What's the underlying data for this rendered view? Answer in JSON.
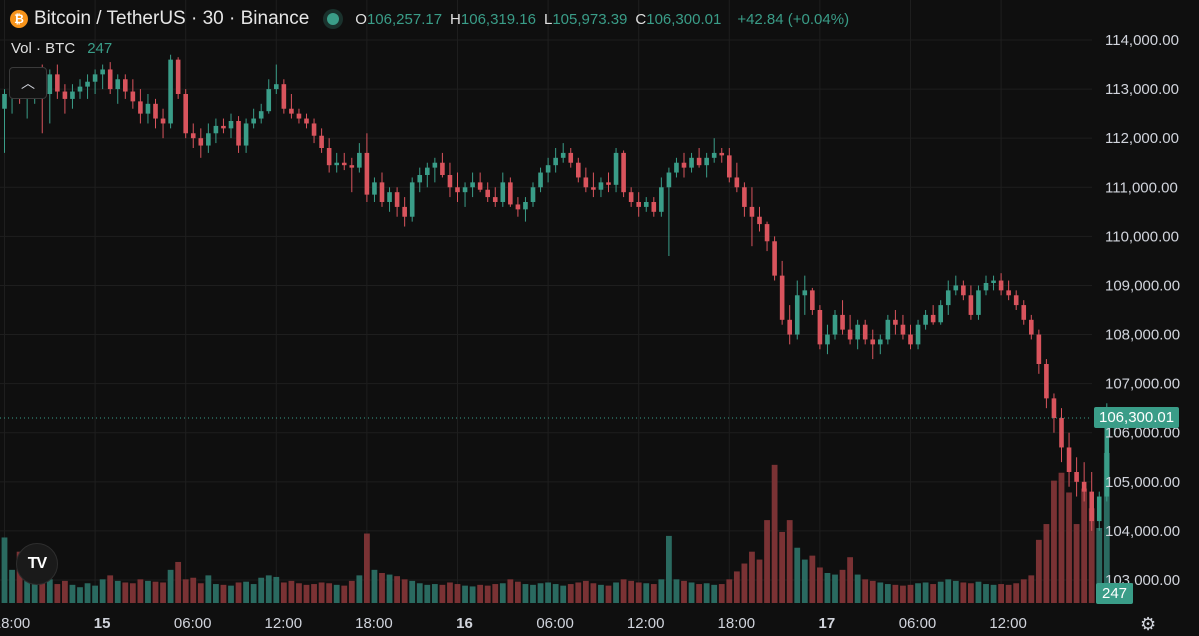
{
  "header": {
    "coin_icon_text": "₿",
    "title": "Bitcoin / TetherUS · 30 · Binance",
    "o_label": "O",
    "o_value": "106,257.17",
    "h_label": "H",
    "h_value": "106,319.16",
    "l_label": "L",
    "l_value": "105,973.39",
    "c_label": "C",
    "c_value": "106,300.01",
    "change": "+42.84 (+0.04%)"
  },
  "volume_indicator": {
    "label": "Vol · BTC",
    "value": "247"
  },
  "logo_text": "TV",
  "colors": {
    "up": "#3a9d88",
    "down": "#d9545d",
    "vol_up": "#2a6a60",
    "vol_down": "#7a3234",
    "grid": "#1e1e1e",
    "bg": "#0f0f0f"
  },
  "icons": {
    "collapse": "chevron-up-icon",
    "settings": "gear-icon",
    "logo": "tradingview-logo-icon"
  },
  "chart_data": {
    "type": "candlestick",
    "interval": "30",
    "ylim": [
      102700,
      114100
    ],
    "y_ticks": [
      103000,
      104000,
      105000,
      106000,
      107000,
      108000,
      109000,
      110000,
      111000,
      112000,
      113000,
      114000
    ],
    "y_tick_labels": [
      "103,000.00",
      "104,000.00",
      "105,000.00",
      "106,000.00",
      "107,000.00",
      "108,000.00",
      "109,000.00",
      "110,000.00",
      "111,000.00",
      "112,000.00",
      "113,000.00",
      "114,000.00"
    ],
    "x_tick_labels": [
      "18:00",
      "15",
      "06:00",
      "12:00",
      "18:00",
      "16",
      "06:00",
      "12:00",
      "18:00",
      "17",
      "06:00",
      "12:00"
    ],
    "x_tick_bold": [
      false,
      true,
      false,
      false,
      false,
      true,
      false,
      false,
      false,
      true,
      false,
      false
    ],
    "x_tick_index": [
      0,
      12,
      24,
      36,
      48,
      60,
      72,
      84,
      96,
      108,
      120,
      132
    ],
    "last_price": 106300.01,
    "last_price_label": "106,300.01",
    "last_volume": 247,
    "last_volume_label": "247",
    "candles": [
      {
        "o": 112600,
        "h": 113000,
        "l": 111700,
        "c": 112900,
        "v": 830
      },
      {
        "o": 112900,
        "h": 113200,
        "l": 112500,
        "c": 112950,
        "v": 420
      },
      {
        "o": 112950,
        "h": 113300,
        "l": 112700,
        "c": 112800,
        "v": 650
      },
      {
        "o": 112800,
        "h": 113200,
        "l": 112400,
        "c": 113000,
        "v": 380
      },
      {
        "o": 113000,
        "h": 113400,
        "l": 112700,
        "c": 113100,
        "v": 500
      },
      {
        "o": 113100,
        "h": 113500,
        "l": 112100,
        "c": 112900,
        "v": 620
      },
      {
        "o": 112900,
        "h": 113400,
        "l": 112300,
        "c": 113300,
        "v": 300
      },
      {
        "o": 113300,
        "h": 113500,
        "l": 112800,
        "c": 112950,
        "v": 240
      },
      {
        "o": 112950,
        "h": 113100,
        "l": 112500,
        "c": 112800,
        "v": 280
      },
      {
        "o": 112800,
        "h": 113100,
        "l": 112600,
        "c": 112950,
        "v": 230
      },
      {
        "o": 112950,
        "h": 113200,
        "l": 112800,
        "c": 113050,
        "v": 200
      },
      {
        "o": 113050,
        "h": 113300,
        "l": 112800,
        "c": 113150,
        "v": 250
      },
      {
        "o": 113150,
        "h": 113400,
        "l": 112900,
        "c": 113300,
        "v": 220
      },
      {
        "o": 113300,
        "h": 113500,
        "l": 113000,
        "c": 113400,
        "v": 300
      },
      {
        "o": 113400,
        "h": 113550,
        "l": 112900,
        "c": 113000,
        "v": 350
      },
      {
        "o": 113000,
        "h": 113300,
        "l": 112700,
        "c": 113200,
        "v": 280
      },
      {
        "o": 113200,
        "h": 113300,
        "l": 112800,
        "c": 112950,
        "v": 260
      },
      {
        "o": 112950,
        "h": 113200,
        "l": 112600,
        "c": 112750,
        "v": 250
      },
      {
        "o": 112750,
        "h": 113000,
        "l": 112300,
        "c": 112500,
        "v": 300
      },
      {
        "o": 112500,
        "h": 112900,
        "l": 112300,
        "c": 112700,
        "v": 280
      },
      {
        "o": 112700,
        "h": 112800,
        "l": 112200,
        "c": 112400,
        "v": 270
      },
      {
        "o": 112400,
        "h": 112600,
        "l": 112000,
        "c": 112300,
        "v": 260
      },
      {
        "o": 112300,
        "h": 113700,
        "l": 112200,
        "c": 113600,
        "v": 420
      },
      {
        "o": 113600,
        "h": 113650,
        "l": 112800,
        "c": 112900,
        "v": 520
      },
      {
        "o": 112900,
        "h": 113000,
        "l": 112000,
        "c": 112100,
        "v": 300
      },
      {
        "o": 112100,
        "h": 112300,
        "l": 111800,
        "c": 112000,
        "v": 320
      },
      {
        "o": 112000,
        "h": 112200,
        "l": 111600,
        "c": 111850,
        "v": 250
      },
      {
        "o": 111850,
        "h": 112300,
        "l": 111700,
        "c": 112100,
        "v": 350
      },
      {
        "o": 112100,
        "h": 112400,
        "l": 111900,
        "c": 112250,
        "v": 240
      },
      {
        "o": 112250,
        "h": 112400,
        "l": 112100,
        "c": 112200,
        "v": 230
      },
      {
        "o": 112200,
        "h": 112500,
        "l": 112000,
        "c": 112350,
        "v": 220
      },
      {
        "o": 112350,
        "h": 112450,
        "l": 111700,
        "c": 111850,
        "v": 260
      },
      {
        "o": 111850,
        "h": 112400,
        "l": 111700,
        "c": 112300,
        "v": 270
      },
      {
        "o": 112300,
        "h": 112600,
        "l": 112200,
        "c": 112400,
        "v": 240
      },
      {
        "o": 112400,
        "h": 112700,
        "l": 112300,
        "c": 112550,
        "v": 320
      },
      {
        "o": 112550,
        "h": 113200,
        "l": 112500,
        "c": 113000,
        "v": 350
      },
      {
        "o": 113000,
        "h": 113500,
        "l": 112900,
        "c": 113100,
        "v": 330
      },
      {
        "o": 113100,
        "h": 113200,
        "l": 112500,
        "c": 112600,
        "v": 260
      },
      {
        "o": 112600,
        "h": 112900,
        "l": 112400,
        "c": 112500,
        "v": 280
      },
      {
        "o": 112500,
        "h": 112600,
        "l": 112300,
        "c": 112400,
        "v": 250
      },
      {
        "o": 112400,
        "h": 112500,
        "l": 112200,
        "c": 112300,
        "v": 230
      },
      {
        "o": 112300,
        "h": 112400,
        "l": 111900,
        "c": 112050,
        "v": 240
      },
      {
        "o": 112050,
        "h": 112200,
        "l": 111700,
        "c": 111800,
        "v": 260
      },
      {
        "o": 111800,
        "h": 112000,
        "l": 111300,
        "c": 111450,
        "v": 250
      },
      {
        "o": 111450,
        "h": 111700,
        "l": 111300,
        "c": 111500,
        "v": 230
      },
      {
        "o": 111500,
        "h": 111700,
        "l": 111350,
        "c": 111450,
        "v": 220
      },
      {
        "o": 111450,
        "h": 111600,
        "l": 110900,
        "c": 111400,
        "v": 280
      },
      {
        "o": 111400,
        "h": 111900,
        "l": 111300,
        "c": 111700,
        "v": 350
      },
      {
        "o": 111700,
        "h": 112100,
        "l": 110700,
        "c": 110850,
        "v": 880
      },
      {
        "o": 110850,
        "h": 111200,
        "l": 110700,
        "c": 111100,
        "v": 420
      },
      {
        "o": 111100,
        "h": 111300,
        "l": 110600,
        "c": 110700,
        "v": 380
      },
      {
        "o": 110700,
        "h": 111000,
        "l": 110500,
        "c": 110900,
        "v": 360
      },
      {
        "o": 110900,
        "h": 111000,
        "l": 110400,
        "c": 110600,
        "v": 340
      },
      {
        "o": 110600,
        "h": 110800,
        "l": 110200,
        "c": 110400,
        "v": 300
      },
      {
        "o": 110400,
        "h": 111200,
        "l": 110300,
        "c": 111100,
        "v": 280
      },
      {
        "o": 111100,
        "h": 111400,
        "l": 110900,
        "c": 111250,
        "v": 250
      },
      {
        "o": 111250,
        "h": 111500,
        "l": 111000,
        "c": 111400,
        "v": 230
      },
      {
        "o": 111400,
        "h": 111600,
        "l": 111100,
        "c": 111500,
        "v": 240
      },
      {
        "o": 111500,
        "h": 111700,
        "l": 111200,
        "c": 111250,
        "v": 230
      },
      {
        "o": 111250,
        "h": 111500,
        "l": 110800,
        "c": 111000,
        "v": 260
      },
      {
        "o": 111000,
        "h": 111300,
        "l": 110700,
        "c": 110900,
        "v": 240
      },
      {
        "o": 110900,
        "h": 111100,
        "l": 110600,
        "c": 111000,
        "v": 220
      },
      {
        "o": 111000,
        "h": 111300,
        "l": 110800,
        "c": 111100,
        "v": 210
      },
      {
        "o": 111100,
        "h": 111300,
        "l": 110900,
        "c": 110950,
        "v": 230
      },
      {
        "o": 110950,
        "h": 111100,
        "l": 110700,
        "c": 110800,
        "v": 220
      },
      {
        "o": 110800,
        "h": 111000,
        "l": 110600,
        "c": 110700,
        "v": 240
      },
      {
        "o": 110700,
        "h": 111300,
        "l": 110600,
        "c": 111100,
        "v": 250
      },
      {
        "o": 111100,
        "h": 111200,
        "l": 110600,
        "c": 110650,
        "v": 300
      },
      {
        "o": 110650,
        "h": 110800,
        "l": 110400,
        "c": 110550,
        "v": 270
      },
      {
        "o": 110550,
        "h": 110800,
        "l": 110300,
        "c": 110700,
        "v": 240
      },
      {
        "o": 110700,
        "h": 111100,
        "l": 110600,
        "c": 111000,
        "v": 230
      },
      {
        "o": 111000,
        "h": 111400,
        "l": 110900,
        "c": 111300,
        "v": 250
      },
      {
        "o": 111300,
        "h": 111600,
        "l": 111100,
        "c": 111450,
        "v": 260
      },
      {
        "o": 111450,
        "h": 111800,
        "l": 111300,
        "c": 111600,
        "v": 240
      },
      {
        "o": 111600,
        "h": 111900,
        "l": 111500,
        "c": 111700,
        "v": 220
      },
      {
        "o": 111700,
        "h": 111800,
        "l": 111400,
        "c": 111500,
        "v": 240
      },
      {
        "o": 111500,
        "h": 111600,
        "l": 111100,
        "c": 111200,
        "v": 260
      },
      {
        "o": 111200,
        "h": 111400,
        "l": 110900,
        "c": 111000,
        "v": 280
      },
      {
        "o": 111000,
        "h": 111300,
        "l": 110800,
        "c": 110950,
        "v": 250
      },
      {
        "o": 110950,
        "h": 111200,
        "l": 110800,
        "c": 111100,
        "v": 230
      },
      {
        "o": 111100,
        "h": 111300,
        "l": 110900,
        "c": 111050,
        "v": 220
      },
      {
        "o": 111050,
        "h": 111800,
        "l": 110900,
        "c": 111700,
        "v": 260
      },
      {
        "o": 111700,
        "h": 111750,
        "l": 110800,
        "c": 110900,
        "v": 300
      },
      {
        "o": 110900,
        "h": 111000,
        "l": 110600,
        "c": 110700,
        "v": 280
      },
      {
        "o": 110700,
        "h": 110900,
        "l": 110400,
        "c": 110600,
        "v": 260
      },
      {
        "o": 110600,
        "h": 110800,
        "l": 110500,
        "c": 110700,
        "v": 250
      },
      {
        "o": 110700,
        "h": 110800,
        "l": 110400,
        "c": 110500,
        "v": 240
      },
      {
        "o": 110500,
        "h": 111200,
        "l": 110400,
        "c": 111000,
        "v": 300
      },
      {
        "o": 111000,
        "h": 111400,
        "l": 109600,
        "c": 111300,
        "v": 850
      },
      {
        "o": 111300,
        "h": 111600,
        "l": 111200,
        "c": 111500,
        "v": 300
      },
      {
        "o": 111500,
        "h": 111700,
        "l": 111200,
        "c": 111400,
        "v": 280
      },
      {
        "o": 111400,
        "h": 111700,
        "l": 111300,
        "c": 111600,
        "v": 260
      },
      {
        "o": 111600,
        "h": 111800,
        "l": 111400,
        "c": 111450,
        "v": 240
      },
      {
        "o": 111450,
        "h": 111700,
        "l": 111200,
        "c": 111600,
        "v": 250
      },
      {
        "o": 111600,
        "h": 112000,
        "l": 111500,
        "c": 111700,
        "v": 230
      },
      {
        "o": 111700,
        "h": 111800,
        "l": 111500,
        "c": 111650,
        "v": 240
      },
      {
        "o": 111650,
        "h": 111800,
        "l": 111100,
        "c": 111200,
        "v": 300
      },
      {
        "o": 111200,
        "h": 111500,
        "l": 110900,
        "c": 111000,
        "v": 400
      },
      {
        "o": 111000,
        "h": 111100,
        "l": 110400,
        "c": 110600,
        "v": 500
      },
      {
        "o": 110600,
        "h": 111000,
        "l": 109800,
        "c": 110400,
        "v": 650
      },
      {
        "o": 110400,
        "h": 110600,
        "l": 110100,
        "c": 110250,
        "v": 550
      },
      {
        "o": 110250,
        "h": 110300,
        "l": 109700,
        "c": 109900,
        "v": 1050
      },
      {
        "o": 109900,
        "h": 110000,
        "l": 109100,
        "c": 109200,
        "v": 1750
      },
      {
        "o": 109200,
        "h": 109500,
        "l": 108200,
        "c": 108300,
        "v": 900
      },
      {
        "o": 108300,
        "h": 108600,
        "l": 107800,
        "c": 108000,
        "v": 1050
      },
      {
        "o": 108000,
        "h": 109100,
        "l": 107900,
        "c": 108800,
        "v": 700
      },
      {
        "o": 108800,
        "h": 109200,
        "l": 108400,
        "c": 108900,
        "v": 550
      },
      {
        "o": 108900,
        "h": 108950,
        "l": 108400,
        "c": 108500,
        "v": 600
      },
      {
        "o": 108500,
        "h": 108600,
        "l": 107700,
        "c": 107800,
        "v": 450
      },
      {
        "o": 107800,
        "h": 108200,
        "l": 107600,
        "c": 108000,
        "v": 380
      },
      {
        "o": 108000,
        "h": 108500,
        "l": 107900,
        "c": 108400,
        "v": 360
      },
      {
        "o": 108400,
        "h": 108700,
        "l": 108000,
        "c": 108100,
        "v": 420
      },
      {
        "o": 108100,
        "h": 108400,
        "l": 107800,
        "c": 107900,
        "v": 580
      },
      {
        "o": 107900,
        "h": 108300,
        "l": 107700,
        "c": 108200,
        "v": 360
      },
      {
        "o": 108200,
        "h": 108300,
        "l": 107800,
        "c": 107900,
        "v": 300
      },
      {
        "o": 107900,
        "h": 108100,
        "l": 107500,
        "c": 107800,
        "v": 280
      },
      {
        "o": 107800,
        "h": 108000,
        "l": 107600,
        "c": 107900,
        "v": 260
      },
      {
        "o": 107900,
        "h": 108400,
        "l": 107800,
        "c": 108300,
        "v": 240
      },
      {
        "o": 108300,
        "h": 108500,
        "l": 108000,
        "c": 108200,
        "v": 230
      },
      {
        "o": 108200,
        "h": 108400,
        "l": 107900,
        "c": 108000,
        "v": 220
      },
      {
        "o": 108000,
        "h": 108200,
        "l": 107700,
        "c": 107800,
        "v": 230
      },
      {
        "o": 107800,
        "h": 108300,
        "l": 107700,
        "c": 108200,
        "v": 250
      },
      {
        "o": 108200,
        "h": 108500,
        "l": 108100,
        "c": 108400,
        "v": 260
      },
      {
        "o": 108400,
        "h": 108600,
        "l": 108200,
        "c": 108250,
        "v": 240
      },
      {
        "o": 108250,
        "h": 108700,
        "l": 108200,
        "c": 108600,
        "v": 270
      },
      {
        "o": 108600,
        "h": 109100,
        "l": 108400,
        "c": 108900,
        "v": 300
      },
      {
        "o": 108900,
        "h": 109200,
        "l": 108800,
        "c": 109000,
        "v": 280
      },
      {
        "o": 109000,
        "h": 109100,
        "l": 108700,
        "c": 108800,
        "v": 260
      },
      {
        "o": 108800,
        "h": 109000,
        "l": 108300,
        "c": 108400,
        "v": 250
      },
      {
        "o": 108400,
        "h": 109000,
        "l": 108300,
        "c": 108900,
        "v": 270
      },
      {
        "o": 108900,
        "h": 109200,
        "l": 108800,
        "c": 109050,
        "v": 240
      },
      {
        "o": 109050,
        "h": 109200,
        "l": 108900,
        "c": 109100,
        "v": 230
      },
      {
        "o": 109100,
        "h": 109250,
        "l": 108800,
        "c": 108900,
        "v": 240
      },
      {
        "o": 108900,
        "h": 109100,
        "l": 108700,
        "c": 108800,
        "v": 230
      },
      {
        "o": 108800,
        "h": 108900,
        "l": 108500,
        "c": 108600,
        "v": 250
      },
      {
        "o": 108600,
        "h": 108700,
        "l": 108200,
        "c": 108300,
        "v": 300
      },
      {
        "o": 108300,
        "h": 108400,
        "l": 107900,
        "c": 108000,
        "v": 350
      },
      {
        "o": 108000,
        "h": 108100,
        "l": 107200,
        "c": 107400,
        "v": 800
      },
      {
        "o": 107400,
        "h": 107500,
        "l": 106500,
        "c": 106700,
        "v": 1000
      },
      {
        "o": 106700,
        "h": 106800,
        "l": 106000,
        "c": 106300,
        "v": 1550
      },
      {
        "o": 106300,
        "h": 106500,
        "l": 105400,
        "c": 105700,
        "v": 1650
      },
      {
        "o": 105700,
        "h": 106000,
        "l": 104900,
        "c": 105200,
        "v": 1400
      },
      {
        "o": 105200,
        "h": 105500,
        "l": 104700,
        "c": 105000,
        "v": 1000
      },
      {
        "o": 105000,
        "h": 105400,
        "l": 104600,
        "c": 104800,
        "v": 1450
      },
      {
        "o": 104800,
        "h": 105200,
        "l": 104000,
        "c": 104200,
        "v": 1200
      },
      {
        "o": 104200,
        "h": 104800,
        "l": 104000,
        "c": 104700,
        "v": 950
      },
      {
        "o": 104700,
        "h": 106600,
        "l": 104600,
        "c": 106200,
        "v": 1900
      },
      {
        "o": 106250,
        "h": 106350,
        "l": 105950,
        "c": 106300,
        "v": 247
      }
    ]
  }
}
